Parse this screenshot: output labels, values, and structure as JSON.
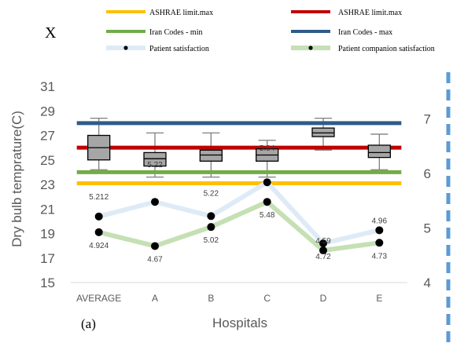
{
  "figure": {
    "corner_letter": "X",
    "panel_label": "(a)"
  },
  "chart_data": {
    "type": "box",
    "xlabel": "Hospitals",
    "ylabel": "Dry bulb temprature(C)",
    "categories": [
      "AVERAGE",
      "A",
      "B",
      "C",
      "D",
      "E"
    ],
    "y_left": {
      "ticks": [
        "15",
        "17",
        "19",
        "21",
        "23",
        "25",
        "27",
        "29",
        "31"
      ],
      "ylim": [
        15,
        31
      ]
    },
    "y_right": {
      "ticks": [
        "4",
        "5",
        "6",
        "7"
      ],
      "ylim": [
        4,
        7.6
      ]
    },
    "boxes": [
      {
        "category": "AVERAGE",
        "whisker_low": 24.2,
        "q1": 25.0,
        "median": 26.0,
        "q3": 27.0,
        "whisker_high": 28.4
      },
      {
        "category": "A",
        "whisker_low": 23.6,
        "q1": 24.5,
        "median": 25.1,
        "q3": 25.6,
        "whisker_high": 27.2
      },
      {
        "category": "B",
        "whisker_low": 23.6,
        "q1": 24.9,
        "median": 25.4,
        "q3": 25.8,
        "whisker_high": 27.2
      },
      {
        "category": "C",
        "whisker_low": 23.6,
        "q1": 24.9,
        "median": 25.4,
        "q3": 25.9,
        "whisker_high": 26.6
      },
      {
        "category": "D",
        "whisker_low": 25.8,
        "q1": 26.9,
        "median": 27.2,
        "q3": 27.6,
        "whisker_high": 28.4
      },
      {
        "category": "E",
        "whisker_low": 24.2,
        "q1": 25.2,
        "median": 25.6,
        "q3": 26.2,
        "whisker_high": 27.1
      }
    ],
    "reference_lines": [
      {
        "name": "ASHRAE limit.max",
        "value": 23.1,
        "color": "#ffc000"
      },
      {
        "name": "ASHRAE limit.max",
        "value": 26.0,
        "color": "#c00000"
      },
      {
        "name": "Iran Codes - min",
        "value": 24.0,
        "color": "#70ad47"
      },
      {
        "name": "Iran Codes - max",
        "value": 28.0,
        "color": "#2e5c8a"
      }
    ],
    "series": [
      {
        "name": "Patient satisfaction",
        "axis": "right",
        "line_color": "#deebf7",
        "values": [
          5.212,
          5.48,
          5.22,
          5.84,
          4.72,
          4.96
        ],
        "labels": [
          "5.212",
          "",
          "5.22",
          "5.84",
          "4.72",
          "4.96"
        ]
      },
      {
        "name": "Patient companion satisfaction",
        "axis": "right",
        "line_color": "#c5e0b4",
        "values": [
          4.924,
          4.67,
          5.02,
          5.48,
          4.59,
          4.73
        ],
        "labels": [
          "4.924",
          "4.67",
          "5.02",
          "5.48",
          "4.59",
          "4.73"
        ]
      }
    ],
    "box_overlay_labels": [
      "",
      "5.22",
      "",
      "",
      "",
      ""
    ],
    "colors": {
      "box_fill": "#a6a6a6",
      "box_stroke": "#000000",
      "whisker": "#7f7f7f",
      "right_axis": "#5b9bd5"
    },
    "legend": {
      "placement": "top",
      "entries": [
        {
          "label": "ASHRAE limit.max",
          "kind": "line",
          "color": "#ffc000"
        },
        {
          "label": "ASHRAE limit.max",
          "kind": "line",
          "color": "#c00000"
        },
        {
          "label": "Iran Codes - min",
          "kind": "line",
          "color": "#70ad47"
        },
        {
          "label": "Iran Codes - max",
          "kind": "line",
          "color": "#2e5c8a"
        },
        {
          "label": "Patient satisfaction",
          "kind": "marker-line",
          "color": "#deebf7"
        },
        {
          "label": "Patient companion satisfaction",
          "kind": "marker-line",
          "color": "#c5e0b4"
        }
      ]
    }
  }
}
